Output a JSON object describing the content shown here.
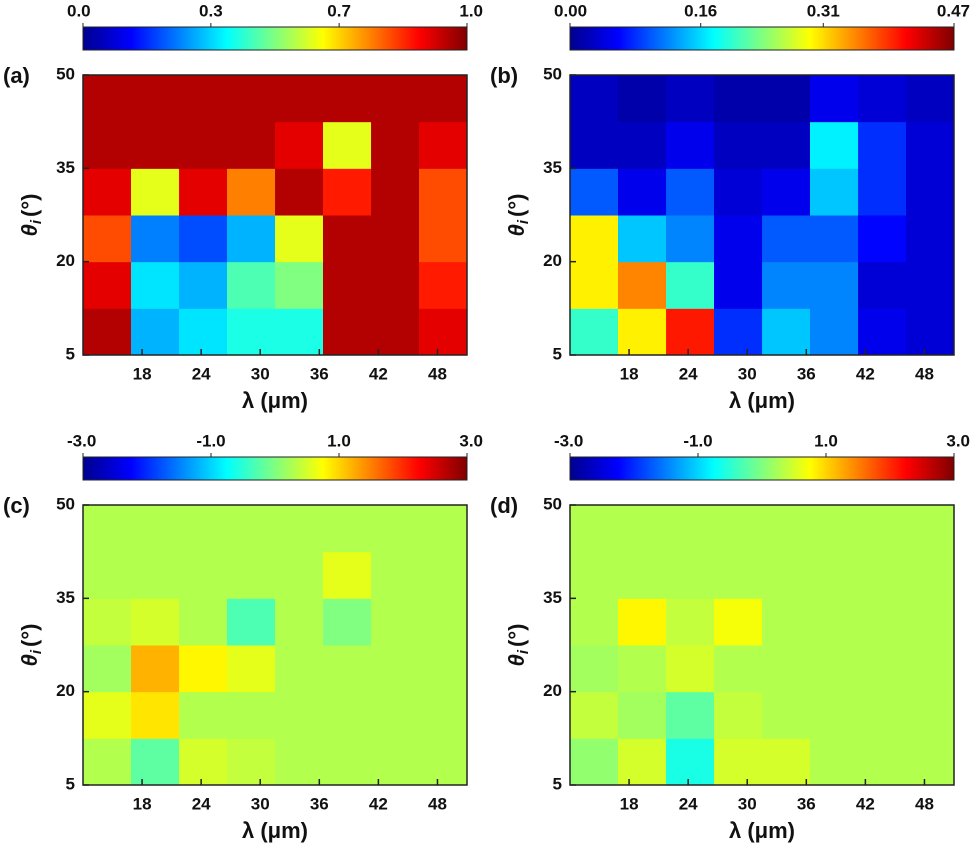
{
  "chart_data": [
    {
      "type": "heatmap",
      "panel_label": "(a)",
      "xlabel": "λ (μm)",
      "ylabel": {
        "symbol": "θ",
        "subscript": "i",
        "unit": "(°)"
      },
      "xlim": [
        12,
        51
      ],
      "xticks": [
        18,
        24,
        30,
        36,
        42,
        48
      ],
      "ylim": [
        5,
        50
      ],
      "yticks": [
        5,
        20,
        35,
        50
      ],
      "clim": [
        0,
        1
      ],
      "cticks": [
        {
          "value": 0,
          "label": "0.0"
        },
        {
          "value": 0.333,
          "label": "0.3"
        },
        {
          "value": 0.667,
          "label": "0.7"
        },
        {
          "value": 1,
          "label": "1.0"
        }
      ],
      "x": [
        14.44,
        19.31,
        24.19,
        29.06,
        33.94,
        38.81,
        43.69,
        48.56
      ],
      "y": [
        8.75,
        16.25,
        23.75,
        31.25,
        38.75,
        46.25
      ],
      "z": [
        [
          0.95,
          0.3,
          0.35,
          0.4,
          0.4,
          0.95,
          0.95,
          0.9
        ],
        [
          0.9,
          0.35,
          0.3,
          0.45,
          0.5,
          0.95,
          0.95,
          0.85
        ],
        [
          0.8,
          0.25,
          0.2,
          0.3,
          0.6,
          0.95,
          0.95,
          0.8
        ],
        [
          0.9,
          0.6,
          0.9,
          0.75,
          0.95,
          0.85,
          0.95,
          0.8
        ],
        [
          0.95,
          0.95,
          0.95,
          0.95,
          0.9,
          0.6,
          0.95,
          0.9
        ],
        [
          0.95,
          0.95,
          0.95,
          0.95,
          0.95,
          0.95,
          0.95,
          0.95
        ]
      ]
    },
    {
      "type": "heatmap",
      "panel_label": "(b)",
      "xlabel": "λ (μm)",
      "ylabel": {
        "symbol": "θ",
        "subscript": "i",
        "unit": "(°)"
      },
      "xlim": [
        12,
        51
      ],
      "xticks": [
        18,
        24,
        30,
        36,
        42,
        48
      ],
      "ylim": [
        5,
        50
      ],
      "yticks": [
        5,
        20,
        35,
        50
      ],
      "clim": [
        0,
        0.47
      ],
      "cticks": [
        {
          "value": 0,
          "label": "0.00"
        },
        0.16,
        0.31,
        0.47
      ],
      "x": [
        14.44,
        19.31,
        24.19,
        29.06,
        33.94,
        38.81,
        43.69,
        48.56
      ],
      "y": [
        8.75,
        16.25,
        23.75,
        31.25,
        38.75,
        46.25
      ],
      "z": [
        [
          0.2,
          0.3,
          0.4,
          0.08,
          0.15,
          0.12,
          0.05,
          0.04
        ],
        [
          0.3,
          0.35,
          0.2,
          0.05,
          0.12,
          0.12,
          0.04,
          0.04
        ],
        [
          0.3,
          0.15,
          0.12,
          0.05,
          0.1,
          0.1,
          0.06,
          0.04
        ],
        [
          0.1,
          0.05,
          0.1,
          0.04,
          0.05,
          0.15,
          0.08,
          0.04
        ],
        [
          0.03,
          0.03,
          0.05,
          0.03,
          0.03,
          0.17,
          0.08,
          0.04
        ],
        [
          0.03,
          0.02,
          0.03,
          0.02,
          0.02,
          0.05,
          0.04,
          0.03
        ]
      ]
    },
    {
      "type": "heatmap",
      "panel_label": "(c)",
      "xlabel": "λ (μm)",
      "ylabel": {
        "symbol": "θ",
        "subscript": "i",
        "unit": "(°)"
      },
      "xlim": [
        12,
        51
      ],
      "xticks": [
        18,
        24,
        30,
        36,
        42,
        48
      ],
      "ylim": [
        5,
        50
      ],
      "yticks": [
        5,
        20,
        35,
        50
      ],
      "clim": [
        -3,
        3
      ],
      "cticks": [
        {
          "value": -3,
          "label": "-3.0"
        },
        {
          "value": -1,
          "label": "-1.0"
        },
        {
          "value": 1,
          "label": "1.0"
        },
        {
          "value": 3,
          "label": "3.0"
        }
      ],
      "x": [
        14.44,
        19.31,
        24.19,
        29.06,
        33.94,
        38.81,
        43.69,
        48.56
      ],
      "y": [
        8.75,
        16.25,
        23.75,
        31.25,
        38.75,
        46.25
      ],
      "z": [
        [
          0.3,
          -0.2,
          0.5,
          0.4,
          0.3,
          0.3,
          0.3,
          0.3
        ],
        [
          0.6,
          0.9,
          0.3,
          0.3,
          0.3,
          0.3,
          0.3,
          0.3
        ],
        [
          0.2,
          1.2,
          0.8,
          0.6,
          0.3,
          0.3,
          0.3,
          0.3
        ],
        [
          0.4,
          0.5,
          0.3,
          -0.3,
          0.3,
          0.0,
          0.3,
          0.3
        ],
        [
          0.3,
          0.3,
          0.3,
          0.3,
          0.3,
          0.6,
          0.3,
          0.3
        ],
        [
          0.3,
          0.3,
          0.3,
          0.3,
          0.3,
          0.3,
          0.3,
          0.3
        ]
      ]
    },
    {
      "type": "heatmap",
      "panel_label": "(d)",
      "xlabel": "λ (μm)",
      "ylabel": {
        "symbol": "θ",
        "subscript": "i",
        "unit": "(°)"
      },
      "xlim": [
        12,
        51
      ],
      "xticks": [
        18,
        24,
        30,
        36,
        42,
        48
      ],
      "ylim": [
        5,
        50
      ],
      "yticks": [
        5,
        20,
        35,
        50
      ],
      "clim": [
        -3,
        3
      ],
      "cticks": [
        {
          "value": -3,
          "label": "-3.0"
        },
        {
          "value": -1,
          "label": "-1.0"
        },
        {
          "value": 1,
          "label": "1.0"
        },
        {
          "value": 3,
          "label": "3.0"
        }
      ],
      "x": [
        14.44,
        19.31,
        24.19,
        29.06,
        33.94,
        38.81,
        43.69,
        48.56
      ],
      "y": [
        8.75,
        16.25,
        23.75,
        31.25,
        38.75,
        46.25
      ],
      "z": [
        [
          0.1,
          0.5,
          -0.6,
          0.5,
          0.5,
          0.3,
          0.3,
          0.3
        ],
        [
          0.4,
          0.2,
          -0.2,
          0.4,
          0.3,
          0.3,
          0.3,
          0.3
        ],
        [
          0.2,
          0.3,
          0.5,
          0.3,
          0.3,
          0.3,
          0.3,
          0.3
        ],
        [
          0.3,
          0.8,
          0.4,
          0.7,
          0.3,
          0.3,
          0.3,
          0.3
        ],
        [
          0.3,
          0.3,
          0.3,
          0.3,
          0.3,
          0.3,
          0.3,
          0.3
        ],
        [
          0.3,
          0.3,
          0.3,
          0.3,
          0.3,
          0.3,
          0.3,
          0.3
        ]
      ]
    }
  ]
}
